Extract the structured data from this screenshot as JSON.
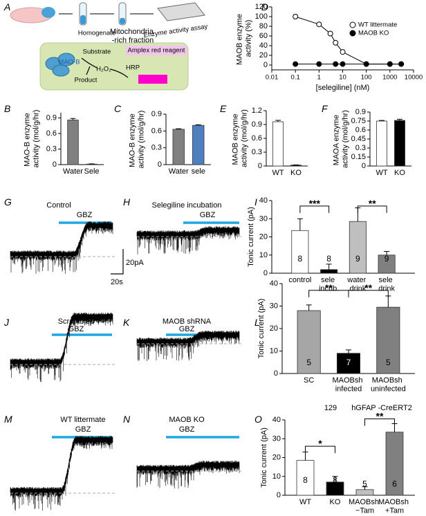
{
  "schematic": {
    "letter": "A",
    "steps": [
      "Homogenate",
      "Mitochondria -rich fraction",
      "Enzyme activity assay"
    ],
    "reaction": {
      "substrate": "Substrate",
      "enzyme": "MAO-B",
      "product": "Product",
      "h2o2": "H₂O₂",
      "hrp": "HRP",
      "reagent": "Amplex red reagent"
    }
  },
  "traces": [
    {
      "letter": "G",
      "label": "Control",
      "drug": "GBZ"
    },
    {
      "letter": "H",
      "label": "Selegiline incubation",
      "drug": "GBZ"
    },
    {
      "letter": "J",
      "label": "Scrambled",
      "drug": "GBZ"
    },
    {
      "letter": "K",
      "label": "MAOB shRNA",
      "drug": "GBZ"
    },
    {
      "letter": "M",
      "label": "WT littermate",
      "drug": "GBZ"
    },
    {
      "letter": "N",
      "label": "MAOB KO",
      "drug": "GBZ"
    }
  ],
  "scale_bar": {
    "current": "20pA",
    "time": "20s"
  },
  "chart_data": [
    {
      "type": "scatter",
      "panel": "D",
      "ylabel": "MAOB enzyme activity (%)",
      "xlabel": "[selegiline] (nM)",
      "xscale": "log",
      "xlim": [
        0.01,
        10000
      ],
      "xticks": [
        0.01,
        0.1,
        1,
        10,
        100,
        1000,
        10000
      ],
      "ylim": [
        -10,
        120
      ],
      "yticks": [
        0,
        20,
        40,
        60,
        80,
        100,
        120
      ],
      "legend": "upper right",
      "series": [
        {
          "name": "WT littermate",
          "color": "#ffffff",
          "x": [
            0.1,
            1,
            3,
            5,
            10,
            100,
            1000,
            3000
          ],
          "values": [
            100,
            84,
            65,
            46,
            27,
            2,
            2,
            2
          ],
          "errors": [
            4,
            3,
            3,
            3,
            3,
            1,
            1,
            1
          ]
        },
        {
          "name": "MAOB KO",
          "color": "#000000",
          "x": [
            0.1,
            1,
            5,
            10,
            100,
            1000,
            3000
          ],
          "values": [
            2,
            2,
            2,
            2,
            2,
            2,
            2
          ]
        }
      ]
    },
    {
      "type": "bar",
      "panel": "B",
      "ylabel": "MAO-B enzyme activity (mol/g/hr)",
      "categories": [
        "Water",
        "Sele"
      ],
      "values": [
        0.86,
        0.01
      ],
      "errors": [
        0.03,
        0.005
      ],
      "colors": [
        "#808080",
        "#808080"
      ],
      "ylim": [
        0,
        1
      ],
      "yticks": [
        0,
        0.3,
        0.6,
        0.9
      ]
    },
    {
      "type": "bar",
      "panel": "C",
      "ylabel": "MAO-B enzyme activity (mol/g/hr)",
      "categories": [
        "Water",
        "sele"
      ],
      "values": [
        0.63,
        0.7
      ],
      "errors": [
        0.01,
        0.01
      ],
      "colors": [
        "#808080",
        "#4f7fbf"
      ],
      "ylim": [
        0,
        0.9
      ],
      "yticks": [
        0,
        0.3,
        0.6,
        0.9
      ]
    },
    {
      "type": "bar",
      "panel": "E",
      "ylabel": "MAOB enzyme activity (mol/g/hr)",
      "categories": [
        "WT",
        "KO"
      ],
      "values": [
        0.96,
        0.02
      ],
      "errors": [
        0.03,
        0.005
      ],
      "colors": [
        "#ffffff",
        "#000000"
      ],
      "ylim": [
        0,
        1.2
      ],
      "yticks": [
        0,
        0.3,
        0.6,
        0.9,
        1.2
      ]
    },
    {
      "type": "bar",
      "panel": "F",
      "ylabel": "MAOA enzyme activity (mol/g/hr)",
      "categories": [
        "WT",
        "KO"
      ],
      "values": [
        0.75,
        0.76
      ],
      "errors": [
        0.01,
        0.02
      ],
      "colors": [
        "#ffffff",
        "#000000"
      ],
      "ylim": [
        0,
        0.9
      ],
      "yticks": [
        0,
        0.15,
        0.3,
        0.45,
        0.6,
        0.75,
        0.9
      ]
    },
    {
      "type": "bar",
      "panel": "I",
      "ylabel": "Tonic current (pA)",
      "categories": [
        "control",
        "sele incub.",
        "water drink",
        "sele drink"
      ],
      "values": [
        23.5,
        2,
        28.5,
        10
      ],
      "errors": [
        6.5,
        3,
        7.5,
        2
      ],
      "n_labels": [
        "8",
        "8",
        "9",
        "9"
      ],
      "colors": [
        "#ffffff",
        "#000000",
        "#bfbfbf",
        "#808080"
      ],
      "significance": [
        "***",
        "**"
      ],
      "ylim": [
        0,
        40
      ],
      "yticks": [
        0,
        10,
        20,
        30,
        40
      ]
    },
    {
      "type": "bar",
      "panel": "L",
      "ylabel": "Tonic current (pA)",
      "categories": [
        "SC",
        "MAOBsh infected",
        "MAOBsh uninfected"
      ],
      "values": [
        28,
        9,
        29.5
      ],
      "errors": [
        2.5,
        1.5,
        5
      ],
      "n_labels": [
        "5",
        "7",
        "5"
      ],
      "colors": [
        "#a6a6a6",
        "#000000",
        "#808080"
      ],
      "significance": [
        "**",
        "**"
      ],
      "ylim": [
        0,
        40
      ],
      "yticks": [
        0,
        10,
        20,
        30,
        40
      ]
    },
    {
      "type": "bar",
      "panel": "O",
      "ylabel": "Tonic current (pA)",
      "categories": [
        "WT",
        "KO",
        "MAOBsh −Tam",
        "MAOBsh +Tam"
      ],
      "values": [
        18.5,
        7,
        3,
        33.5
      ],
      "errors": [
        4.5,
        3,
        1.5,
        4.5
      ],
      "n_labels": [
        "8",
        "8",
        "5",
        "6"
      ],
      "colors": [
        "#ffffff",
        "#000000",
        "#bfbfbf",
        "#808080"
      ],
      "significance": [
        "*",
        "**"
      ],
      "groups": [
        "129",
        "hGFAP -CreERT2"
      ],
      "ylim": [
        0,
        40
      ],
      "yticks": [
        0,
        10,
        20,
        30,
        40
      ]
    }
  ]
}
